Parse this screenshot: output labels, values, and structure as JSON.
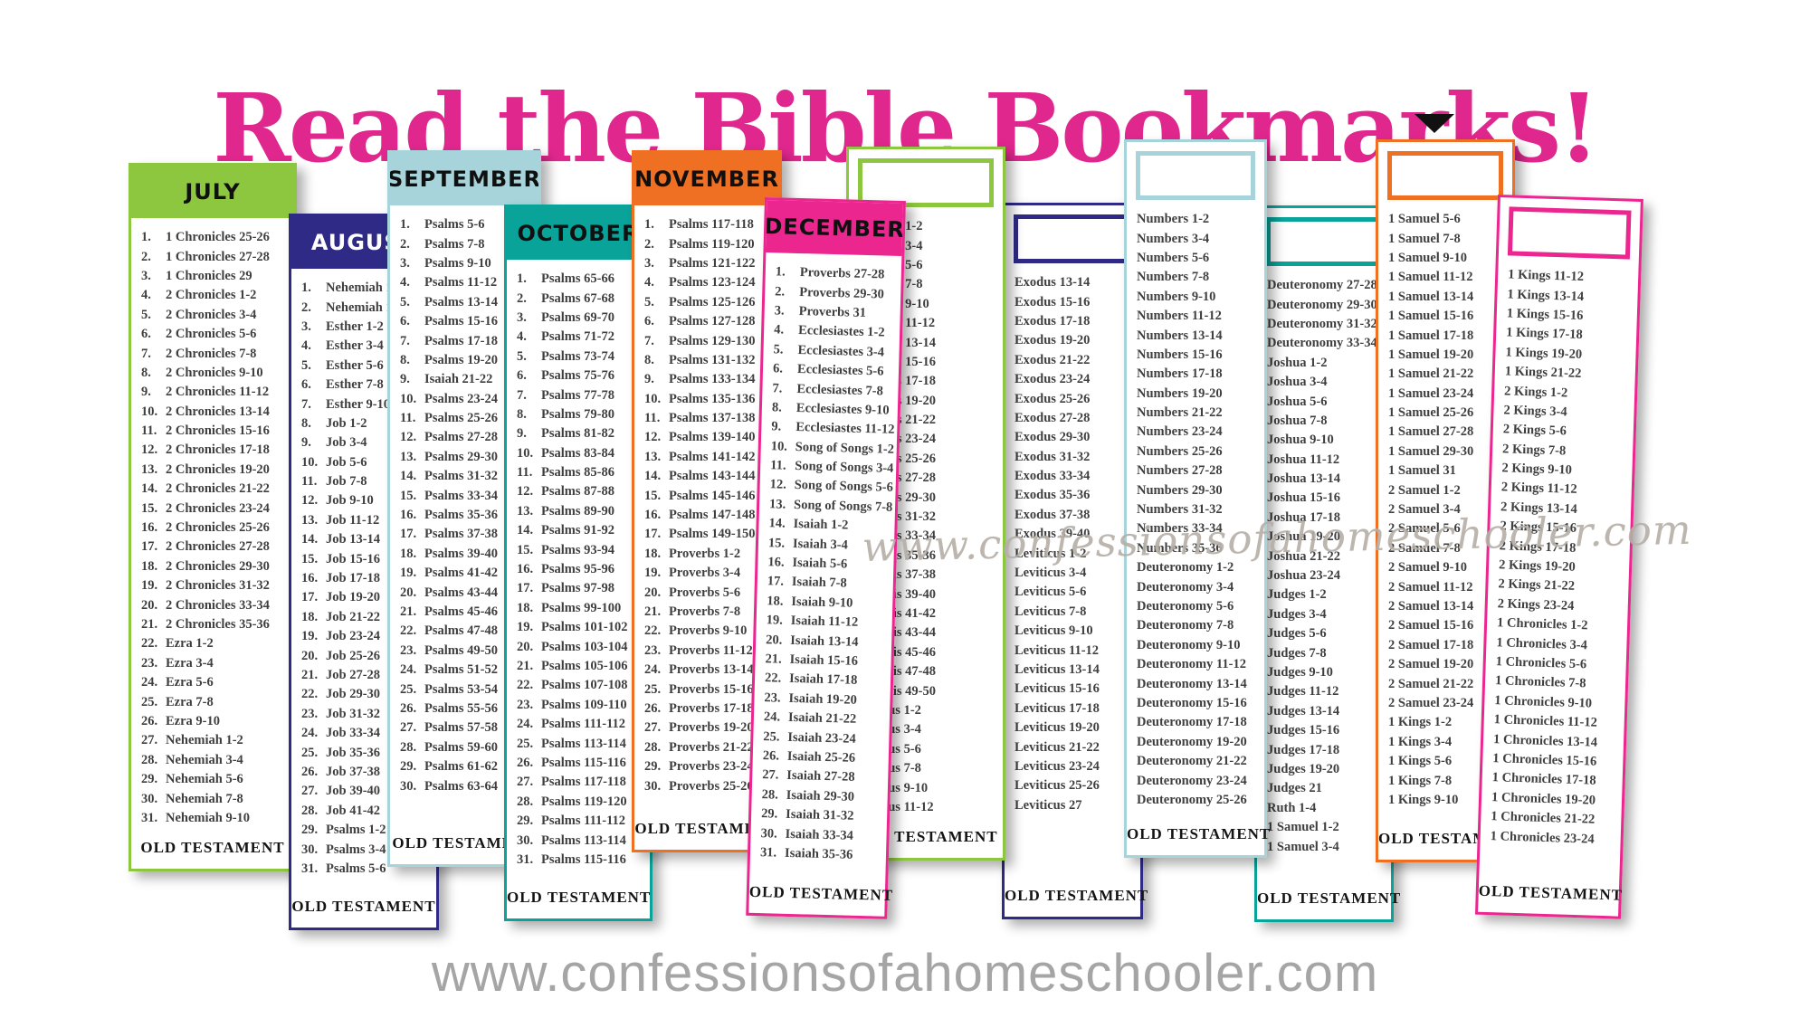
{
  "title": "Read the Bible Bookmarks!",
  "title_color": "#e0278e",
  "watermark_middle": "www.confessionsofahomeschooler.com",
  "watermark_bottom": "www.confessionsofahomeschooler.com",
  "footer_label": "OLD TESTAMENT",
  "bookmarks": [
    {
      "id": "july",
      "month": "JULY",
      "color": "#8dc63f",
      "header_text_color": "#101010",
      "numbered": true,
      "items": [
        "1 Chronicles 25-26",
        "1 Chronicles 27-28",
        "1 Chronicles 29",
        "2 Chronicles 1-2",
        "2 Chronicles 3-4",
        "2 Chronicles 5-6",
        "2 Chronicles 7-8",
        "2 Chronicles 9-10",
        "2 Chronicles 11-12",
        "2 Chronicles 13-14",
        "2 Chronicles 15-16",
        "2 Chronicles 17-18",
        "2 Chronicles 19-20",
        "2 Chronicles 21-22",
        "2 Chronicles 23-24",
        "2 Chronicles 25-26",
        "2 Chronicles 27-28",
        "2 Chronicles 29-30",
        "2 Chronicles 31-32",
        "2 Chronicles 33-34",
        "2 Chronicles 35-36",
        "Ezra 1-2",
        "Ezra 3-4",
        "Ezra 5-6",
        "Ezra 7-8",
        "Ezra 9-10",
        "Nehemiah 1-2",
        "Nehemiah 3-4",
        "Nehemiah 5-6",
        "Nehemiah 7-8",
        "Nehemiah 9-10"
      ]
    },
    {
      "id": "august",
      "month": "AUGUST",
      "color": "#2f2a85",
      "header_text_color": "#ffffff",
      "numbered": true,
      "items": [
        "Nehemiah 11-12",
        "Nehemiah 13",
        "Esther 1-2",
        "Esther 3-4",
        "Esther 5-6",
        "Esther 7-8",
        "Esther 9-10",
        "Job 1-2",
        "Job 3-4",
        "Job 5-6",
        "Job 7-8",
        "Job 9-10",
        "Job 11-12",
        "Job 13-14",
        "Job 15-16",
        "Job 17-18",
        "Job 19-20",
        "Job 21-22",
        "Job 23-24",
        "Job 25-26",
        "Job 27-28",
        "Job 29-30",
        "Job 31-32",
        "Job 33-34",
        "Job 35-36",
        "Job 37-38",
        "Job 39-40",
        "Job 41-42",
        "Psalms 1-2",
        "Psalms 3-4",
        "Psalms 5-6"
      ]
    },
    {
      "id": "september",
      "month": "SEPTEMBER",
      "color": "#a7d4da",
      "header_text_color": "#101010",
      "numbered": true,
      "items": [
        "Psalms 5-6",
        "Psalms 7-8",
        "Psalms 9-10",
        "Psalms 11-12",
        "Psalms 13-14",
        "Psalms 15-16",
        "Psalms 17-18",
        "Psalms 19-20",
        "Isaiah 21-22",
        "Psalms 23-24",
        "Psalms 25-26",
        "Psalms 27-28",
        "Psalms 29-30",
        "Psalms 31-32",
        "Psalms 33-34",
        "Psalms 35-36",
        "Psalms 37-38",
        "Psalms 39-40",
        "Psalms 41-42",
        "Psalms 43-44",
        "Psalms 45-46",
        "Psalms 47-48",
        "Psalms 49-50",
        "Psalms 51-52",
        "Psalms 53-54",
        "Psalms 55-56",
        "Psalms 57-58",
        "Psalms 59-60",
        "Psalms 61-62",
        "Psalms 63-64"
      ]
    },
    {
      "id": "october",
      "month": "OCTOBER",
      "color": "#0aa39a",
      "header_text_color": "#101010",
      "numbered": true,
      "items": [
        "Psalms 65-66",
        "Psalms 67-68",
        "Psalms 69-70",
        "Psalms 71-72",
        "Psalms 73-74",
        "Psalms 75-76",
        "Psalms 77-78",
        "Psalms 79-80",
        "Psalms 81-82",
        "Psalms 83-84",
        "Psalms 85-86",
        "Psalms 87-88",
        "Psalms 89-90",
        "Psalms 91-92",
        "Psalms 93-94",
        "Psalms 95-96",
        "Psalms 97-98",
        "Psalms 99-100",
        "Psalms 101-102",
        "Psalms 103-104",
        "Psalms 105-106",
        "Psalms 107-108",
        "Psalms 109-110",
        "Psalms 111-112",
        "Psalms 113-114",
        "Psalms 115-116",
        "Psalms 117-118",
        "Psalms 119-120",
        "Psalms 111-112",
        "Psalms 113-114",
        "Psalms 115-116"
      ]
    },
    {
      "id": "november",
      "month": "NOVEMBER",
      "color": "#f07023",
      "header_text_color": "#101010",
      "numbered": true,
      "items": [
        "Psalms 117-118",
        "Psalms 119-120",
        "Psalms 121-122",
        "Psalms 123-124",
        "Psalms 125-126",
        "Psalms 127-128",
        "Psalms 129-130",
        "Psalms 131-132",
        "Psalms 133-134",
        "Psalms 135-136",
        "Psalms 137-138",
        "Psalms 139-140",
        "Psalms 141-142",
        "Psalms 143-144",
        "Psalms 145-146",
        "Psalms 147-148",
        "Psalms 149-150",
        "Proverbs 1-2",
        "Proverbs 3-4",
        "Proverbs 5-6",
        "Proverbs 7-8",
        "Proverbs 9-10",
        "Proverbs 11-12",
        "Proverbs 13-14",
        "Proverbs 15-16",
        "Proverbs 17-18",
        "Proverbs 19-20",
        "Proverbs 21-22",
        "Proverbs 23-24",
        "Proverbs 25-26"
      ]
    },
    {
      "id": "december",
      "month": "DECEMBER",
      "color": "#ec268f",
      "header_text_color": "#101010",
      "numbered": true,
      "items": [
        "Proverbs 27-28",
        "Proverbs 29-30",
        "Proverbs 31",
        "Ecclesiastes 1-2",
        "Ecclesiastes 3-4",
        "Ecclesiastes 5-6",
        "Ecclesiastes 7-8",
        "Ecclesiastes 9-10",
        "Ecclesiastes 11-12",
        "Song of Songs 1-2",
        "Song of Songs 3-4",
        "Song of Songs 5-6",
        "Song of Songs 7-8",
        "Isaiah 1-2",
        "Isaiah 3-4",
        "Isaiah 5-6",
        "Isaiah 7-8",
        "Isaiah 9-10",
        "Isaiah 11-12",
        "Isaiah 13-14",
        "Isaiah 15-16",
        "Isaiah 17-18",
        "Isaiah 19-20",
        "Isaiah 21-22",
        "Isaiah 23-24",
        "Isaiah 25-26",
        "Isaiah 27-28",
        "Isaiah 29-30",
        "Isaiah 31-32",
        "Isaiah 33-34",
        "Isaiah 35-36"
      ]
    },
    {
      "id": "blank-green",
      "month": "",
      "color": "#8dc63f",
      "header_text_color": "#101010",
      "numbered": false,
      "items": [
        "Genesis 1-2",
        "Genesis 3-4",
        "Genesis 5-6",
        "Genesis 7-8",
        "Genesis 9-10",
        "Genesis 11-12",
        "Genesis 13-14",
        "Genesis 15-16",
        "Genesis 17-18",
        "Genesis 19-20",
        "Genesis 21-22",
        "Genesis 23-24",
        "Genesis 25-26",
        "Genesis 27-28",
        "Genesis 29-30",
        "Genesis 31-32",
        "Genesis 33-34",
        "Genesis 35-36",
        "Genesis 37-38",
        "Genesis 39-40",
        "Genesis 41-42",
        "Genesis 43-44",
        "Genesis 45-46",
        "Genesis 47-48",
        "Genesis 49-50",
        "Exodus 1-2",
        "Exodus 3-4",
        "Exodus 5-6",
        "Exodus 7-8",
        "Exodus 9-10",
        "Exodus 11-12"
      ]
    },
    {
      "id": "blank-navy",
      "month": "",
      "color": "#2f2a85",
      "header_text_color": "#ffffff",
      "numbered": false,
      "items": [
        "Exodus 13-14",
        "Exodus 15-16",
        "Exodus 17-18",
        "Exodus 19-20",
        "Exodus 21-22",
        "Exodus 23-24",
        "Exodus 25-26",
        "Exodus 27-28",
        "Exodus 29-30",
        "Exodus 31-32",
        "Exodus 33-34",
        "Exodus 35-36",
        "Exodus 37-38",
        "Exodus 39-40",
        "Leviticus 1-2",
        "Leviticus 3-4",
        "Leviticus 5-6",
        "Leviticus 7-8",
        "Leviticus 9-10",
        "Leviticus 11-12",
        "Leviticus 13-14",
        "Leviticus 15-16",
        "Leviticus 17-18",
        "Leviticus 19-20",
        "Leviticus 21-22",
        "Leviticus 23-24",
        "Leviticus 25-26",
        "Leviticus 27"
      ]
    },
    {
      "id": "blank-lightblue",
      "month": "",
      "color": "#a7d4da",
      "header_text_color": "#101010",
      "numbered": false,
      "items": [
        "Numbers 1-2",
        "Numbers 3-4",
        "Numbers 5-6",
        "Numbers 7-8",
        "Numbers 9-10",
        "Numbers 11-12",
        "Numbers 13-14",
        "Numbers 15-16",
        "Numbers 17-18",
        "Numbers 19-20",
        "Numbers 21-22",
        "Numbers 23-24",
        "Numbers 25-26",
        "Numbers 27-28",
        "Numbers 29-30",
        "Numbers 31-32",
        "Numbers 33-34",
        "Numbers 35-36",
        "Deuteronomy 1-2",
        "Deuteronomy 3-4",
        "Deuteronomy 5-6",
        "Deuteronomy 7-8",
        "Deuteronomy 9-10",
        "Deuteronomy 11-12",
        "Deuteronomy 13-14",
        "Deuteronomy 15-16",
        "Deuteronomy 17-18",
        "Deuteronomy 19-20",
        "Deuteronomy 21-22",
        "Deuteronomy 23-24",
        "Deuteronomy 25-26"
      ]
    },
    {
      "id": "blank-teal",
      "month": "",
      "color": "#0aa39a",
      "header_text_color": "#101010",
      "numbered": false,
      "items": [
        "Deuteronomy 27-28",
        "Deuteronomy 29-30",
        "Deuteronomy 31-32",
        "Deuteronomy 33-34",
        "Joshua 1-2",
        "Joshua 3-4",
        "Joshua 5-6",
        "Joshua 7-8",
        "Joshua 9-10",
        "Joshua 11-12",
        "Joshua 13-14",
        "Joshua 15-16",
        "Joshua 17-18",
        "Joshua 19-20",
        "Joshua 21-22",
        "Joshua 23-24",
        "Judges 1-2",
        "Judges 3-4",
        "Judges 5-6",
        "Judges 7-8",
        "Judges 9-10",
        "Judges 11-12",
        "Judges 13-14",
        "Judges 15-16",
        "Judges 17-18",
        "Judges 19-20",
        "Judges 21",
        "Ruth 1-4",
        "1 Samuel 1-2",
        "1 Samuel 3-4"
      ]
    },
    {
      "id": "blank-orange",
      "month": "",
      "color": "#f07023",
      "header_text_color": "#101010",
      "numbered": false,
      "items": [
        "1 Samuel 5-6",
        "1 Samuel 7-8",
        "1 Samuel 9-10",
        "1 Samuel 11-12",
        "1 Samuel 13-14",
        "1 Samuel 15-16",
        "1 Samuel 17-18",
        "1 Samuel 19-20",
        "1 Samuel 21-22",
        "1 Samuel 23-24",
        "1 Samuel 25-26",
        "1 Samuel 27-28",
        "1 Samuel 29-30",
        "1 Samuel 31",
        "2 Samuel 1-2",
        "2 Samuel 3-4",
        "2 Samuel 5-6",
        "2 Samuel 7-8",
        "2 Samuel 9-10",
        "2 Samuel 11-12",
        "2 Samuel 13-14",
        "2 Samuel 15-16",
        "2 Samuel 17-18",
        "2 Samuel 19-20",
        "2 Samuel 21-22",
        "2 Samuel 23-24",
        "1 Kings 1-2",
        "1 Kings 3-4",
        "1 Kings 5-6",
        "1 Kings 7-8",
        "1 Kings 9-10"
      ]
    },
    {
      "id": "blank-pink",
      "month": "",
      "color": "#ec268f",
      "header_text_color": "#101010",
      "numbered": false,
      "items": [
        "1 Kings 11-12",
        "1 Kings 13-14",
        "1 Kings 15-16",
        "1 Kings 17-18",
        "1 Kings 19-20",
        "1 Kings 21-22",
        "2 Kings 1-2",
        "2 Kings 3-4",
        "2 Kings 5-6",
        "2 Kings 7-8",
        "2 Kings 9-10",
        "2 Kings 11-12",
        "2 Kings 13-14",
        "2 Kings 15-16",
        "2 Kings 17-18",
        "2 Kings 19-20",
        "2 Kings 21-22",
        "2 Kings 23-24",
        "1 Chronicles 1-2",
        "1 Chronicles 3-4",
        "1 Chronicles 5-6",
        "1 Chronicles 7-8",
        "1 Chronicles 9-10",
        "1 Chronicles 11-12",
        "1 Chronicles 13-14",
        "1 Chronicles 15-16",
        "1 Chronicles 17-18",
        "1 Chronicles 19-20",
        "1 Chronicles 21-22",
        "1 Chronicles 23-24"
      ]
    }
  ]
}
